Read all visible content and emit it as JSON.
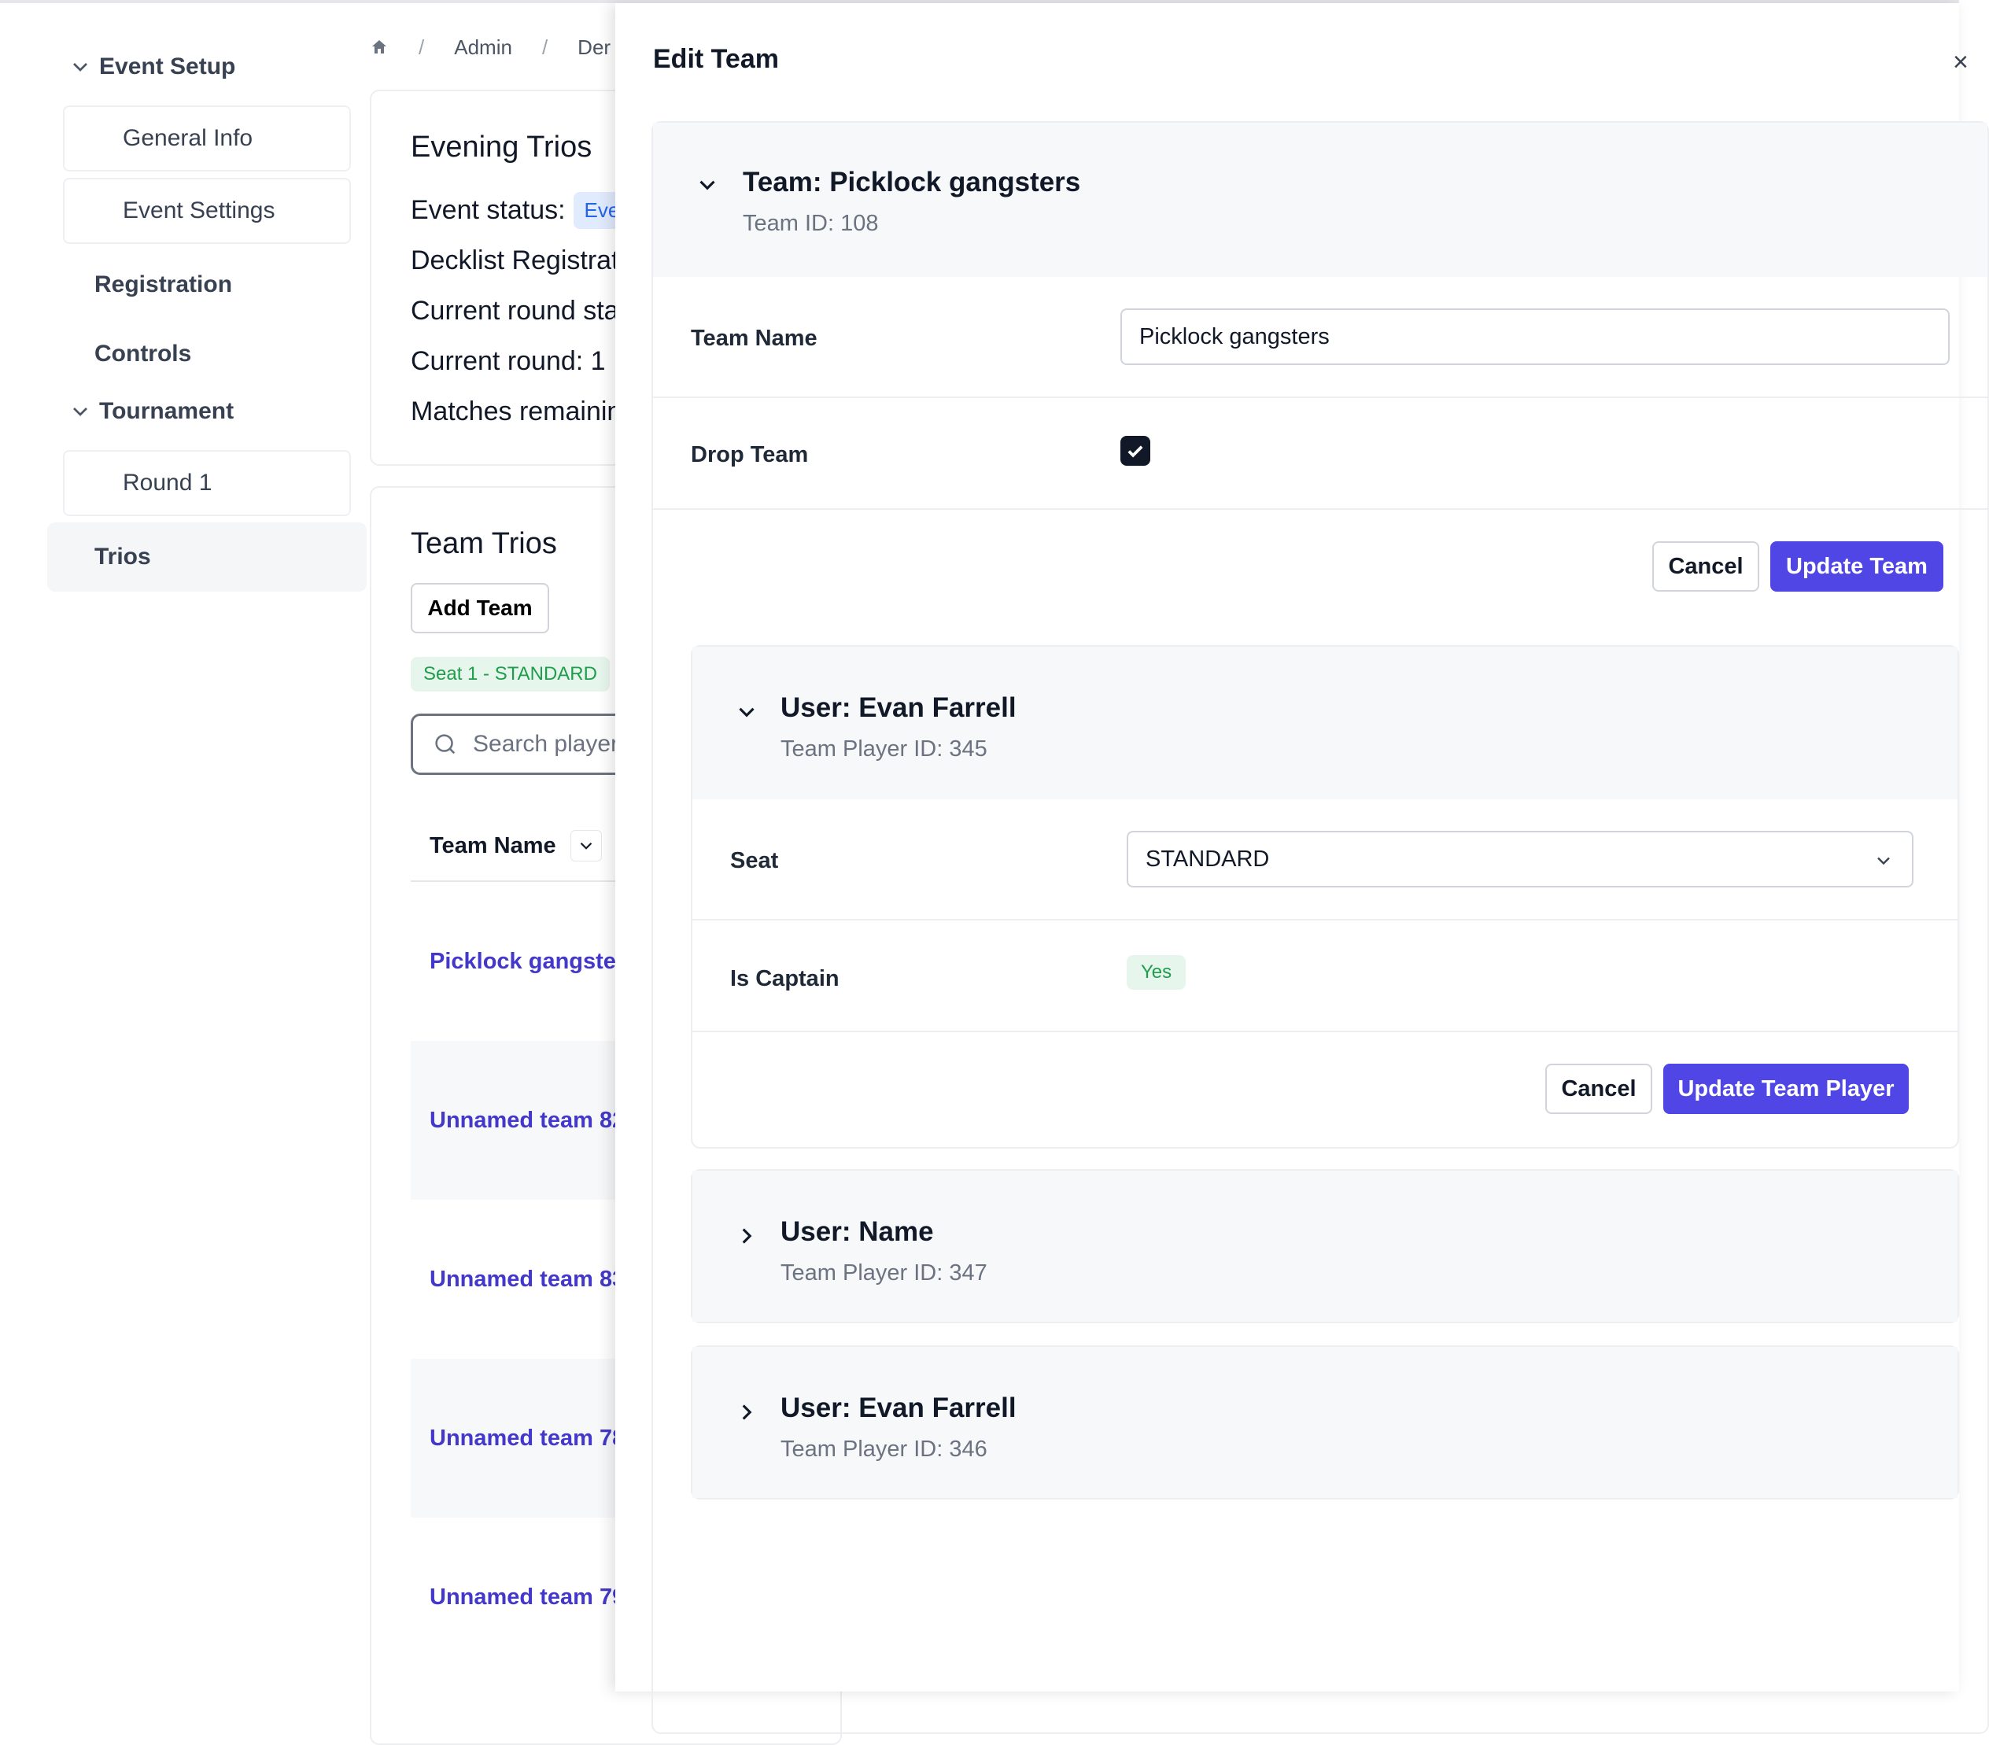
{
  "sidebar": {
    "event_setup": "Event Setup",
    "general_info": "General Info",
    "event_settings": "Event Settings",
    "registration": "Registration",
    "controls": "Controls",
    "tournament": "Tournament",
    "round_1": "Round 1",
    "trios": "Trios"
  },
  "breadcrumb": {
    "admin": "Admin",
    "next": "Der"
  },
  "event_card": {
    "title": "Evening Trios",
    "status_label": "Event status:",
    "status_value": "Eve",
    "decklist": "Decklist Registrat",
    "round_status": "Current round sta",
    "current_round": "Current round: 1",
    "matches_remaining": "Matches remainin"
  },
  "teams_card": {
    "title": "Team Trios",
    "add_team": "Add Team",
    "seat_badge": "Seat 1 - STANDARD",
    "search_placeholder": "Search player",
    "column_team_name": "Team Name",
    "rows": [
      "Picklock gangster",
      "Unnamed team 82",
      "Unnamed team 83",
      "Unnamed team 78",
      "Unnamed team 79"
    ]
  },
  "drawer": {
    "title": "Edit Team",
    "close": "×",
    "team_title": "Team: Picklock gangsters",
    "team_id": "Team ID: 108",
    "team_name_label": "Team Name",
    "team_name_value": "Picklock gangsters",
    "drop_team_label": "Drop Team",
    "drop_team_checked": true,
    "cancel": "Cancel",
    "update_team": "Update Team",
    "players": [
      {
        "title": "User: Evan Farrell",
        "id": "Team Player ID: 345",
        "expanded": true,
        "seat_label": "Seat",
        "seat_value": "STANDARD",
        "captain_label": "Is Captain",
        "captain_value": "Yes",
        "cancel": "Cancel",
        "update": "Update Team Player"
      },
      {
        "title": "User: Name",
        "id": "Team Player ID: 347",
        "expanded": false
      },
      {
        "title": "User: Evan Farrell",
        "id": "Team Player ID: 346",
        "expanded": false
      }
    ]
  },
  "colors": {
    "primary": "#4f46e5",
    "link": "#4338ca",
    "success_bg": "#e7f6ec",
    "success_text": "#1f9d4c",
    "info_bg": "#e0ebfd",
    "info_text": "#2563eb"
  }
}
